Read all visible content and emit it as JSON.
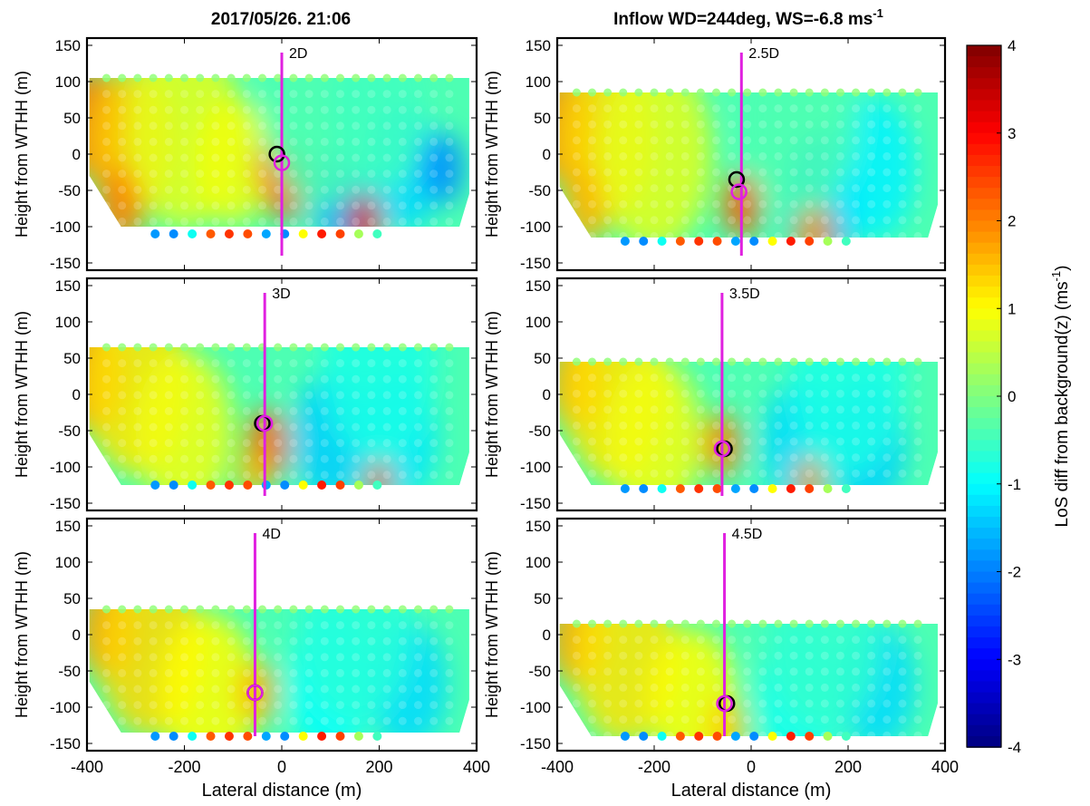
{
  "figure": {
    "title_left": "2017/05/26. 21:06",
    "title_right_prefix": "Inflow WD=244deg, WS=-6.8 ms",
    "title_right_sup": "-1"
  },
  "chart_data": {
    "type": "heatmap",
    "xlabel": "Lateral distance (m)",
    "ylabel": "Height from WTHH (m)",
    "xlim": [
      -400,
      400
    ],
    "ylim": [
      -160,
      160
    ],
    "xticks": [
      -400,
      -200,
      0,
      200,
      400
    ],
    "yticks": [
      150,
      100,
      50,
      0,
      -50,
      -100,
      -150
    ],
    "colorbar": {
      "label_prefix": "LoS diff from background(z) (ms",
      "label_sup": "-1",
      "label_suffix": ")",
      "range": [
        -4,
        4
      ],
      "ticks": [
        4,
        3,
        2,
        1,
        0,
        -1,
        -2,
        -3,
        -4
      ]
    },
    "panels": [
      {
        "label": "2D",
        "top": 105,
        "bottom": -100,
        "bottom_right": -100,
        "line_x": 0,
        "center_black": [
          -10,
          0
        ],
        "center_magenta": [
          0,
          -12
        ],
        "marker_row": -110,
        "blobs": [
          {
            "x": -390,
            "y": 40,
            "v": 2.2,
            "r": 70
          },
          {
            "x": -310,
            "y": 20,
            "v": 1.4,
            "r": 90
          },
          {
            "x": -330,
            "y": -70,
            "v": 2.0,
            "r": 50
          },
          {
            "x": -200,
            "y": 30,
            "v": 0.8,
            "r": 120
          },
          {
            "x": -100,
            "y": -10,
            "v": 0.9,
            "r": 80
          },
          {
            "x": 5,
            "y": -40,
            "v": 2.6,
            "r": 45
          },
          {
            "x": -20,
            "y": -20,
            "v": 2.0,
            "r": 35
          },
          {
            "x": 120,
            "y": -60,
            "v": -1.7,
            "r": 60
          },
          {
            "x": 250,
            "y": -20,
            "v": -1.3,
            "r": 80
          },
          {
            "x": 330,
            "y": -20,
            "v": -1.9,
            "r": 45
          },
          {
            "x": 170,
            "y": -95,
            "v": 3.2,
            "r": 35
          },
          {
            "x": 80,
            "y": 60,
            "v": -0.4,
            "r": 120
          },
          {
            "x": 200,
            "y": 60,
            "v": -0.5,
            "r": 100
          }
        ]
      },
      {
        "label": "2.5D",
        "top": 85,
        "bottom": -115,
        "bottom_right": -115,
        "line_x": -20,
        "center_black": [
          -30,
          -35
        ],
        "center_magenta": [
          -25,
          -52
        ],
        "marker_row": -120,
        "blobs": [
          {
            "x": -390,
            "y": 35,
            "v": 2.0,
            "r": 70
          },
          {
            "x": -300,
            "y": 20,
            "v": 1.3,
            "r": 100
          },
          {
            "x": -340,
            "y": -70,
            "v": 1.6,
            "r": 50
          },
          {
            "x": -200,
            "y": 0,
            "v": 0.8,
            "r": 120
          },
          {
            "x": -20,
            "y": -70,
            "v": 2.3,
            "r": 40
          },
          {
            "x": 150,
            "y": -60,
            "v": -1.6,
            "r": 80
          },
          {
            "x": 250,
            "y": -20,
            "v": -1.1,
            "r": 90
          },
          {
            "x": 130,
            "y": -110,
            "v": 1.8,
            "r": 40
          },
          {
            "x": 100,
            "y": 50,
            "v": -0.4,
            "r": 120
          }
        ]
      },
      {
        "label": "3D",
        "top": 65,
        "bottom": -125,
        "bottom_right": -125,
        "line_x": -35,
        "center_black": [
          -40,
          -40
        ],
        "center_magenta": [
          -35,
          -40
        ],
        "marker_row": -125,
        "blobs": [
          {
            "x": -390,
            "y": 25,
            "v": 2.0,
            "r": 70
          },
          {
            "x": -300,
            "y": 10,
            "v": 1.2,
            "r": 110
          },
          {
            "x": -200,
            "y": -50,
            "v": 0.9,
            "r": 100
          },
          {
            "x": -30,
            "y": -70,
            "v": 2.2,
            "r": 45
          },
          {
            "x": -60,
            "y": -110,
            "v": 1.5,
            "r": 30
          },
          {
            "x": 100,
            "y": -60,
            "v": -1.4,
            "r": 80
          },
          {
            "x": 240,
            "y": -60,
            "v": -1.2,
            "r": 80
          },
          {
            "x": 200,
            "y": -120,
            "v": 2.5,
            "r": 25
          },
          {
            "x": 200,
            "y": 40,
            "v": -0.8,
            "r": 120
          }
        ]
      },
      {
        "label": "3.5D",
        "top": 45,
        "bottom": -125,
        "bottom_right": -125,
        "line_x": -60,
        "center_black": [
          -55,
          -75
        ],
        "center_magenta": [
          -60,
          -75
        ],
        "marker_row": -130,
        "blobs": [
          {
            "x": -360,
            "y": 15,
            "v": 1.9,
            "r": 60
          },
          {
            "x": -280,
            "y": 0,
            "v": 1.2,
            "r": 110
          },
          {
            "x": -200,
            "y": -60,
            "v": 0.9,
            "r": 100
          },
          {
            "x": -60,
            "y": -70,
            "v": 2.0,
            "r": 40
          },
          {
            "x": 100,
            "y": -70,
            "v": -1.3,
            "r": 80
          },
          {
            "x": 240,
            "y": -70,
            "v": -1.4,
            "r": 80
          },
          {
            "x": 120,
            "y": -120,
            "v": 1.8,
            "r": 30
          },
          {
            "x": 200,
            "y": 20,
            "v": -0.8,
            "r": 120
          }
        ]
      },
      {
        "label": "4D",
        "top": 35,
        "bottom": -135,
        "bottom_right": -135,
        "line_x": -55,
        "center_black": [
          -55,
          -80
        ],
        "center_magenta": [
          -55,
          -80
        ],
        "marker_row": -140,
        "blobs": [
          {
            "x": -360,
            "y": 5,
            "v": 1.9,
            "r": 60
          },
          {
            "x": -270,
            "y": -20,
            "v": 1.3,
            "r": 110
          },
          {
            "x": -150,
            "y": -80,
            "v": 1.0,
            "r": 100
          },
          {
            "x": -50,
            "y": -80,
            "v": 1.6,
            "r": 40
          },
          {
            "x": 100,
            "y": -70,
            "v": -1.0,
            "r": 90
          },
          {
            "x": 260,
            "y": -70,
            "v": -1.3,
            "r": 80
          },
          {
            "x": 150,
            "y": 10,
            "v": -0.7,
            "r": 120
          }
        ]
      },
      {
        "label": "4.5D",
        "top": 15,
        "bottom": -140,
        "bottom_right": -140,
        "line_x": -55,
        "center_black": [
          -50,
          -95
        ],
        "center_magenta": [
          -55,
          -95
        ],
        "marker_row": -140,
        "blobs": [
          {
            "x": -360,
            "y": -5,
            "v": 1.8,
            "r": 60
          },
          {
            "x": -260,
            "y": -30,
            "v": 1.2,
            "r": 110
          },
          {
            "x": -120,
            "y": -90,
            "v": 1.0,
            "r": 90
          },
          {
            "x": -50,
            "y": -130,
            "v": 1.4,
            "r": 40
          },
          {
            "x": 100,
            "y": -90,
            "v": -0.9,
            "r": 90
          },
          {
            "x": 260,
            "y": -70,
            "v": -1.3,
            "r": 80
          },
          {
            "x": 150,
            "y": 0,
            "v": -0.6,
            "r": 120
          }
        ]
      }
    ]
  }
}
